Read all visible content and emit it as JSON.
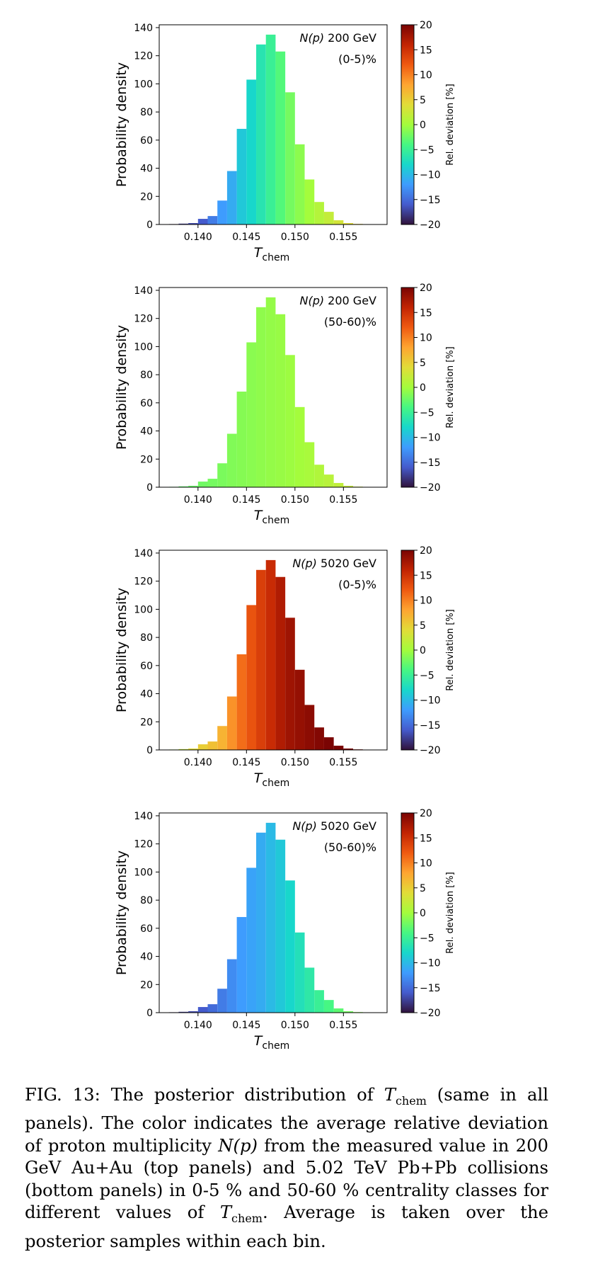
{
  "panels": [
    {
      "label_math": "N(p)",
      "label_rest": " 200 GeV",
      "centrality": "(0-5)%"
    },
    {
      "label_math": "N(p)",
      "label_rest": " 200 GeV",
      "centrality": "(50-60)%"
    },
    {
      "label_math": "N(p)",
      "label_rest": " 5020 GeV",
      "centrality": "(0-5)%"
    },
    {
      "label_math": "N(p)",
      "label_rest": " 5020 GeV",
      "centrality": "(50-60)%"
    }
  ],
  "chart_data": [
    {
      "type": "bar",
      "title": "N(p) 200 GeV (0-5)%",
      "xlabel": "T_chem",
      "ylabel": "Probability density",
      "x_bin_centers": [
        0.1375,
        0.1385,
        0.1395,
        0.1405,
        0.1415,
        0.1425,
        0.1435,
        0.1445,
        0.1455,
        0.1465,
        0.1475,
        0.1485,
        0.1495,
        0.1505,
        0.1515,
        0.1525,
        0.1535,
        0.1545,
        0.1555,
        0.1565,
        0.1575,
        0.1585
      ],
      "values": [
        0.3,
        0.6,
        1,
        4,
        6,
        17,
        38,
        68,
        103,
        128,
        135,
        123,
        94,
        57,
        32,
        16,
        9,
        3,
        1,
        0.4,
        0.2,
        0.1
      ],
      "relative_deviation_percent": [
        -20,
        -18,
        -17,
        -16,
        -14,
        -12,
        -11,
        -9,
        -8,
        -6.5,
        -5,
        -3.5,
        -2,
        -1,
        0,
        1,
        2,
        3,
        4,
        5,
        5.5,
        6
      ],
      "xlim": [
        0.136,
        0.1595
      ],
      "ylim": [
        0,
        142
      ],
      "xticks": [
        "0.140",
        "0.145",
        "0.150",
        "0.155"
      ],
      "yticks": [
        "0",
        "20",
        "40",
        "60",
        "80",
        "100",
        "120",
        "140"
      ],
      "colorbar": {
        "label": "Rel. deviation [%]",
        "range": [
          -20,
          20
        ],
        "ticks": [
          "20",
          "15",
          "10",
          "5",
          "0",
          "−5",
          "−10",
          "−15",
          "−20"
        ]
      },
      "grid": false
    },
    {
      "type": "bar",
      "title": "N(p) 200 GeV (50-60)%",
      "xlabel": "T_chem",
      "ylabel": "Probability density",
      "x_bin_centers": [
        0.1375,
        0.1385,
        0.1395,
        0.1405,
        0.1415,
        0.1425,
        0.1435,
        0.1445,
        0.1455,
        0.1465,
        0.1475,
        0.1485,
        0.1495,
        0.1505,
        0.1515,
        0.1525,
        0.1535,
        0.1545,
        0.1555,
        0.1565,
        0.1575,
        0.1585
      ],
      "values": [
        0.3,
        0.6,
        1,
        4,
        6,
        17,
        38,
        68,
        103,
        128,
        135,
        123,
        94,
        57,
        32,
        16,
        9,
        3,
        1,
        0.4,
        0.2,
        0.1
      ],
      "relative_deviation_percent": [
        -3,
        -2.8,
        -2.5,
        -2.2,
        -2,
        -1.8,
        -1.5,
        -1.3,
        -1.1,
        -0.9,
        -0.7,
        -0.5,
        -0.3,
        0,
        0.3,
        0.8,
        1.3,
        1.8,
        2.2,
        2.6,
        3,
        3.3
      ],
      "xlim": [
        0.136,
        0.1595
      ],
      "ylim": [
        0,
        142
      ],
      "xticks": [
        "0.140",
        "0.145",
        "0.150",
        "0.155"
      ],
      "yticks": [
        "0",
        "20",
        "40",
        "60",
        "80",
        "100",
        "120",
        "140"
      ],
      "colorbar": {
        "label": "Rel. deviation [%]",
        "range": [
          -20,
          20
        ],
        "ticks": [
          "20",
          "15",
          "10",
          "5",
          "0",
          "−5",
          "−10",
          "−15",
          "−20"
        ]
      },
      "grid": false
    },
    {
      "type": "bar",
      "title": "N(p) 5020 GeV (0-5)%",
      "xlabel": "T_chem",
      "ylabel": "Probability density",
      "x_bin_centers": [
        0.1375,
        0.1385,
        0.1395,
        0.1405,
        0.1415,
        0.1425,
        0.1435,
        0.1445,
        0.1455,
        0.1465,
        0.1475,
        0.1485,
        0.1495,
        0.1505,
        0.1515,
        0.1525,
        0.1535,
        0.1545,
        0.1555,
        0.1565,
        0.1575,
        0.1585
      ],
      "values": [
        0.3,
        0.6,
        1,
        4,
        6,
        17,
        38,
        68,
        103,
        128,
        135,
        123,
        94,
        57,
        32,
        16,
        9,
        3,
        1,
        0.4,
        0.2,
        0.1
      ],
      "relative_deviation_percent": [
        0,
        2,
        4,
        5,
        6,
        7,
        9,
        11,
        12.5,
        14,
        15.5,
        17,
        18,
        18.5,
        19,
        19.5,
        20,
        20,
        20,
        20,
        20,
        20
      ],
      "xlim": [
        0.136,
        0.1595
      ],
      "ylim": [
        0,
        142
      ],
      "xticks": [
        "0.140",
        "0.145",
        "0.150",
        "0.155"
      ],
      "yticks": [
        "0",
        "20",
        "40",
        "60",
        "80",
        "100",
        "120",
        "140"
      ],
      "colorbar": {
        "label": "Rel. deviation [%]",
        "range": [
          -20,
          20
        ],
        "ticks": [
          "20",
          "15",
          "10",
          "5",
          "0",
          "−5",
          "−10",
          "−15",
          "−20"
        ]
      },
      "grid": false
    },
    {
      "type": "bar",
      "title": "N(p) 5020 GeV (50-60)%",
      "xlabel": "T_chem",
      "ylabel": "Probability density",
      "x_bin_centers": [
        0.1375,
        0.1385,
        0.1395,
        0.1405,
        0.1415,
        0.1425,
        0.1435,
        0.1445,
        0.1455,
        0.1465,
        0.1475,
        0.1485,
        0.1495,
        0.1505,
        0.1515,
        0.1525,
        0.1535,
        0.1545,
        0.1555,
        0.1565,
        0.1575,
        0.1585
      ],
      "values": [
        0.3,
        0.6,
        1,
        4,
        6,
        17,
        38,
        68,
        103,
        128,
        135,
        123,
        94,
        57,
        32,
        16,
        9,
        3,
        1,
        0.4,
        0.2,
        0.1
      ],
      "relative_deviation_percent": [
        -19,
        -18,
        -17,
        -16,
        -15,
        -14,
        -13,
        -12,
        -11.5,
        -11,
        -10,
        -9,
        -8,
        -7,
        -6,
        -5,
        -4,
        -3,
        -2,
        -1,
        0,
        0.5
      ],
      "xlim": [
        0.136,
        0.1595
      ],
      "ylim": [
        0,
        142
      ],
      "xticks": [
        "0.140",
        "0.145",
        "0.150",
        "0.155"
      ],
      "yticks": [
        "0",
        "20",
        "40",
        "60",
        "80",
        "100",
        "120",
        "140"
      ],
      "colorbar": {
        "label": "Rel. deviation [%]",
        "range": [
          -20,
          20
        ],
        "ticks": [
          "20",
          "15",
          "10",
          "5",
          "0",
          "−5",
          "−10",
          "−15",
          "−20"
        ]
      },
      "grid": false
    }
  ],
  "caption": {
    "p1": "FIG. 13: The posterior distribution of ",
    "math_T": "T",
    "math_sub": "chem",
    "p2": " (same in all panels). The color indicates the average relative deviation of proton multiplicity ",
    "math_N": "N(p)",
    "p3": " from the measured value in 200 GeV Au+Au (top panels) and 5.02 TeV Pb+Pb collisions (bottom panels) in 0-5 % and 50-60 % centrality classes for different values of ",
    "p4": ". Average is taken over the posterior samples within each bin."
  }
}
